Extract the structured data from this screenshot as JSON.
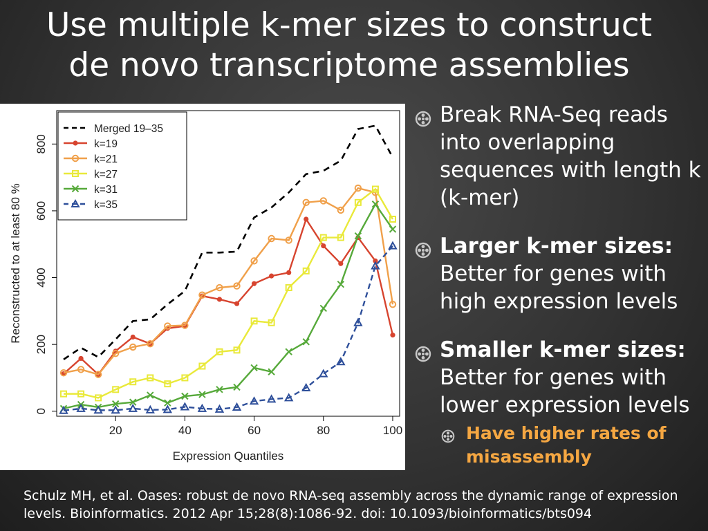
{
  "slide": {
    "title_line1": "Use multiple k-mer sizes to construct",
    "title_line2": "de novo transcriptome assemblies",
    "bullets": [
      {
        "text": "Break RNA-Seq reads into overlapping sequences with length k (k-mer)"
      },
      {
        "bold": "Larger k-mer sizes:",
        "text": "Better for genes with high expression levels"
      },
      {
        "bold": "Smaller k-mer sizes:",
        "text": "Better for genes with lower expression levels"
      }
    ],
    "sub_bullet": "Have higher rates of misassembly",
    "citation": "Schulz MH, et al. Oases: robust de novo RNA-seq assembly across the dynamic range of expression levels. Bioinformatics. 2012 Apr 15;28(8):1086-92. doi: 10.1093/bioinformatics/bts094",
    "bullet_icon": "film-reel-icon",
    "colors": {
      "sub_bullet": "#f5a742",
      "background": "#333333"
    }
  },
  "chart_data": {
    "type": "line",
    "xlabel": "Expression Quantiles",
    "ylabel": "Reconstructed to at least  80 %",
    "xlim": [
      3,
      102
    ],
    "ylim": [
      -15,
      900
    ],
    "xticks": [
      20,
      40,
      60,
      80,
      100
    ],
    "yticks": [
      0,
      200,
      400,
      600,
      800
    ],
    "grid": false,
    "legend_position": "top-left",
    "x": [
      5,
      10,
      15,
      20,
      25,
      30,
      35,
      40,
      45,
      50,
      55,
      60,
      65,
      70,
      75,
      80,
      85,
      90,
      95,
      100
    ],
    "series": [
      {
        "name": "Merged 19–35",
        "color": "#000000",
        "style": "dashed",
        "marker": "none",
        "values": [
          155,
          190,
          162,
          215,
          270,
          275,
          320,
          360,
          475,
          475,
          478,
          580,
          610,
          655,
          710,
          720,
          750,
          845,
          855,
          760
        ]
      },
      {
        "name": "k=19",
        "color": "#d7442f",
        "style": "solid",
        "marker": "dot",
        "values": [
          112,
          158,
          110,
          180,
          222,
          202,
          248,
          255,
          345,
          335,
          322,
          382,
          405,
          415,
          575,
          495,
          442,
          520,
          450,
          228
        ]
      },
      {
        "name": "k=21",
        "color": "#f0a04a",
        "style": "solid",
        "marker": "circle",
        "values": [
          115,
          125,
          110,
          173,
          192,
          202,
          255,
          257,
          348,
          370,
          375,
          450,
          517,
          512,
          625,
          630,
          602,
          668,
          655,
          320
        ]
      },
      {
        "name": "k=27",
        "color": "#e9e93a",
        "style": "solid",
        "marker": "square",
        "values": [
          52,
          52,
          40,
          65,
          88,
          100,
          82,
          100,
          135,
          178,
          183,
          270,
          265,
          370,
          420,
          520,
          520,
          625,
          665,
          575
        ]
      },
      {
        "name": "k=31",
        "color": "#56a93a",
        "style": "solid",
        "marker": "x",
        "values": [
          8,
          20,
          12,
          22,
          27,
          48,
          25,
          45,
          50,
          65,
          72,
          130,
          118,
          178,
          208,
          308,
          380,
          525,
          620,
          545
        ]
      },
      {
        "name": "k=35",
        "color": "#2e4f9a",
        "style": "dashed",
        "marker": "triangle",
        "values": [
          2,
          8,
          3,
          3,
          8,
          4,
          5,
          13,
          8,
          6,
          12,
          30,
          36,
          40,
          70,
          112,
          148,
          265,
          435,
          495
        ]
      }
    ]
  }
}
